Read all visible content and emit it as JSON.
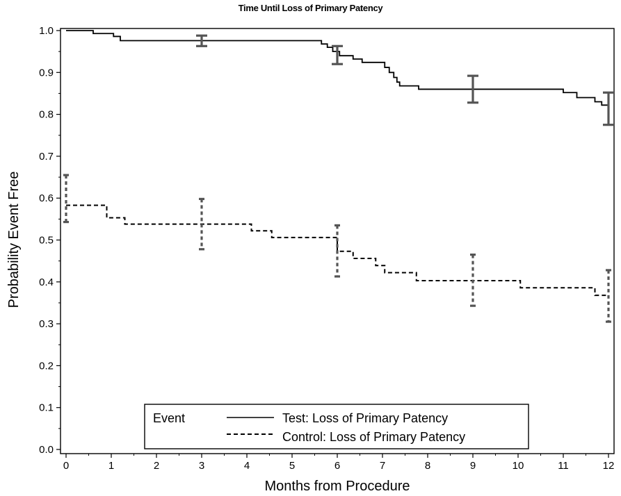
{
  "chart_data": {
    "type": "line",
    "title": "Time Until Loss of Primary Patency",
    "xlabel": "Months from Procedure",
    "ylabel": "Probability Event Free",
    "xlim": [
      0,
      12
    ],
    "ylim": [
      0,
      1
    ],
    "x_ticks": [
      "0",
      "1",
      "2",
      "3",
      "4",
      "5",
      "6",
      "7",
      "8",
      "9",
      "10",
      "11",
      "12"
    ],
    "y_ticks": [
      "0.0",
      "0.1",
      "0.2",
      "0.3",
      "0.4",
      "0.5",
      "0.6",
      "0.7",
      "0.8",
      "0.9",
      "1.0"
    ],
    "grid": false,
    "legend": {
      "title": "Event",
      "placement": "bottom-center"
    },
    "series": [
      {
        "name": "Test: Loss of Primary Patency",
        "line_style": "solid",
        "color": "#000000",
        "step": [
          [
            0,
            1.0
          ],
          [
            0.6,
            0.993
          ],
          [
            1.05,
            0.986
          ],
          [
            1.2,
            0.976
          ],
          [
            5.5,
            0.976
          ],
          [
            5.65,
            0.968
          ],
          [
            5.78,
            0.96
          ],
          [
            5.9,
            0.95
          ],
          [
            6.05,
            0.94
          ],
          [
            6.35,
            0.932
          ],
          [
            6.55,
            0.924
          ],
          [
            7.05,
            0.912
          ],
          [
            7.15,
            0.9
          ],
          [
            7.25,
            0.888
          ],
          [
            7.32,
            0.877
          ],
          [
            7.38,
            0.868
          ],
          [
            7.8,
            0.86
          ],
          [
            11.0,
            0.852
          ],
          [
            11.3,
            0.84
          ],
          [
            11.7,
            0.83
          ],
          [
            11.85,
            0.822
          ],
          [
            12.0,
            0.78
          ]
        ],
        "error_bars": [
          {
            "x": 3,
            "y": 0.975,
            "lower": 0.963,
            "upper": 0.988
          },
          {
            "x": 6,
            "y": 0.94,
            "lower": 0.92,
            "upper": 0.963
          },
          {
            "x": 9,
            "y": 0.86,
            "lower": 0.828,
            "upper": 0.892
          },
          {
            "x": 12,
            "y": 0.815,
            "lower": 0.775,
            "upper": 0.852
          }
        ]
      },
      {
        "name": "Control: Loss of Primary Patency",
        "line_style": "dashed",
        "color": "#000000",
        "step": [
          [
            0,
            0.583
          ],
          [
            0.9,
            0.553
          ],
          [
            1.3,
            0.538
          ],
          [
            4.1,
            0.522
          ],
          [
            4.55,
            0.506
          ],
          [
            6.0,
            0.473
          ],
          [
            6.35,
            0.456
          ],
          [
            6.85,
            0.439
          ],
          [
            7.05,
            0.422
          ],
          [
            7.75,
            0.403
          ],
          [
            10.05,
            0.386
          ],
          [
            11.7,
            0.368
          ],
          [
            12.0,
            0.368
          ]
        ],
        "error_bars": [
          {
            "x": 0,
            "y": 0.583,
            "lower": 0.543,
            "upper": 0.655
          },
          {
            "x": 3,
            "y": 0.538,
            "lower": 0.478,
            "upper": 0.598
          },
          {
            "x": 6,
            "y": 0.473,
            "lower": 0.413,
            "upper": 0.535
          },
          {
            "x": 9,
            "y": 0.403,
            "lower": 0.343,
            "upper": 0.465
          },
          {
            "x": 12,
            "y": 0.368,
            "lower": 0.305,
            "upper": 0.428
          }
        ]
      }
    ],
    "error_bar_color": "#555555"
  }
}
